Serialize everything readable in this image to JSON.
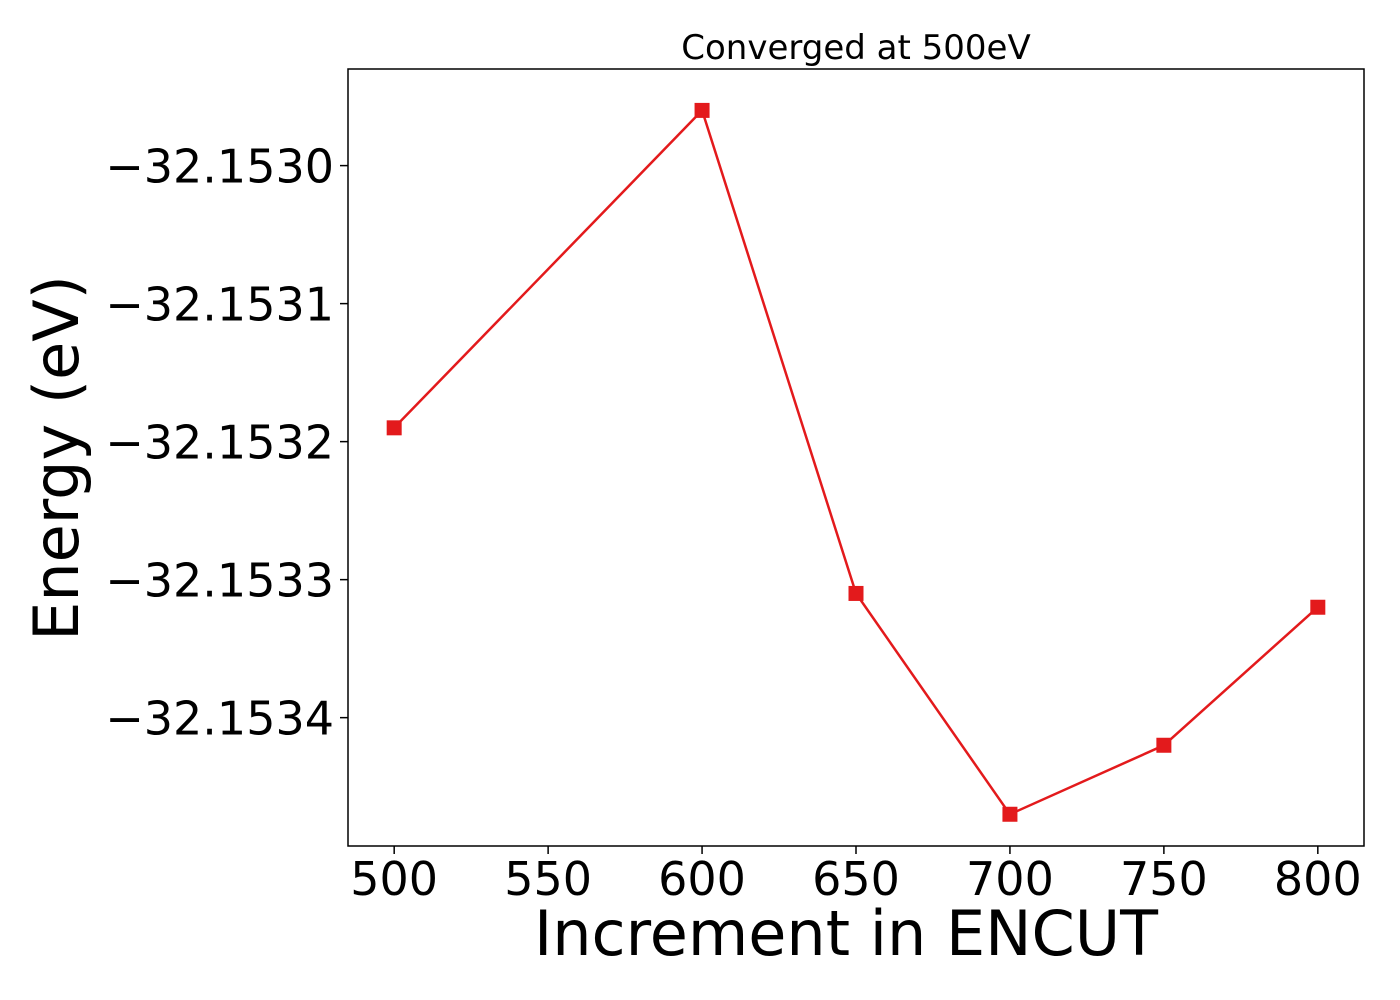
{
  "chart_data": {
    "type": "line",
    "title": "Converged at 500eV",
    "xlabel": "Increment in ENCUT",
    "ylabel": "Energy (eV)",
    "x": [
      500,
      600,
      650,
      700,
      750,
      800
    ],
    "series": [
      {
        "values": [
          -32.15319,
          -32.15296,
          -32.15331,
          -32.15347,
          -32.15342,
          -32.15332
        ],
        "color": "#e31a1c",
        "marker": "square"
      }
    ],
    "x_ticks": [
      500,
      550,
      600,
      650,
      700,
      750,
      800
    ],
    "x_tick_labels": [
      "500",
      "550",
      "600",
      "650",
      "700",
      "750",
      "800"
    ],
    "y_ticks": [
      -32.153,
      -32.1531,
      -32.1532,
      -32.1533,
      -32.1534
    ],
    "y_tick_labels": [
      "−32.1530",
      "−32.1531",
      "−32.1532",
      "−32.1533",
      "−32.1534"
    ],
    "xlim": [
      485,
      815
    ],
    "ylim": [
      -32.153493,
      -32.15293
    ],
    "grid": false,
    "legend": "none"
  }
}
